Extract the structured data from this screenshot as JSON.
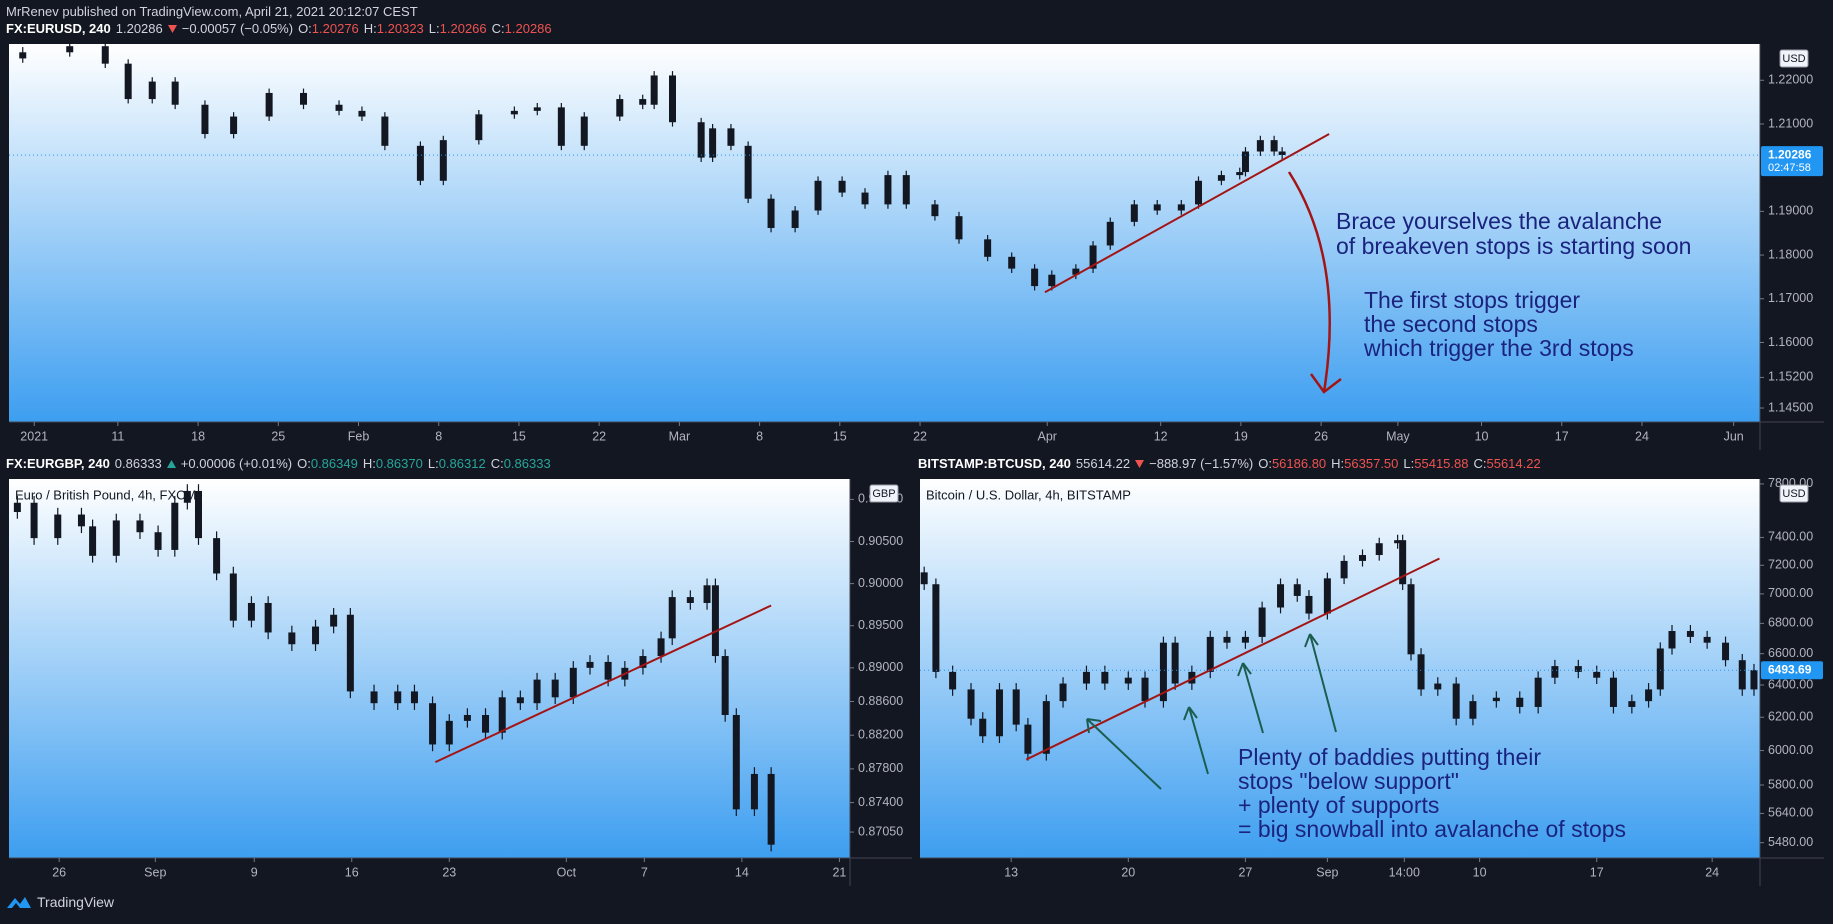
{
  "header": {
    "published": "MrRenev published on TradingView.com, April 21, 2021 20:12:07 CEST"
  },
  "footer": {
    "brand": "TradingView"
  },
  "chart_data": [
    {
      "type": "candlestick",
      "legend": {
        "symbol": "FX:EURUSD, 240",
        "last": "1.20286",
        "direction": "down",
        "change": "−0.00057 (−0.05%)",
        "ohlc": [
          {
            "label": "O:",
            "value": "1.20276"
          },
          {
            "label": "H:",
            "value": "1.20323"
          },
          {
            "label": "L:",
            "value": "1.20266"
          },
          {
            "label": "C:",
            "value": "1.20286"
          }
        ]
      },
      "currency": "USD",
      "last_price": 1.20286,
      "countdown": "02:47:58",
      "candle_color": "#131722",
      "xlim": [
        1.5,
        154.3
      ],
      "ylim": [
        1.1418,
        1.2283
      ],
      "log_scale": false,
      "grid": false,
      "xticks": [
        {
          "value": 3.7,
          "label": "2021"
        },
        11,
        18,
        25,
        {
          "value": 32,
          "label": "Feb"
        },
        {
          "value": 39,
          "label": "8"
        },
        {
          "value": 46,
          "label": "15"
        },
        {
          "value": 53,
          "label": "22"
        },
        {
          "value": 60,
          "label": "Mar"
        },
        {
          "value": 67,
          "label": "8"
        },
        {
          "value": 74,
          "label": "15"
        },
        {
          "value": 81,
          "label": "22"
        },
        {
          "value": 92.1,
          "label": "Apr"
        },
        {
          "value": 102,
          "label": "12"
        },
        {
          "value": 109,
          "label": "19"
        },
        {
          "value": 116,
          "label": "26"
        },
        {
          "value": 122.7,
          "label": "May"
        },
        {
          "value": 130,
          "label": "10"
        },
        {
          "value": 137,
          "label": "17"
        },
        {
          "value": 144,
          "label": "24"
        },
        {
          "value": 152,
          "label": "Jun"
        }
      ],
      "yticks": [
        {
          "value": 1.22,
          "label": "1.22000"
        },
        {
          "value": 1.21,
          "label": "1.21000"
        },
        {
          "value": 1.19,
          "label": "1.19000"
        },
        {
          "value": 1.18,
          "label": "1.18000"
        },
        {
          "value": 1.17,
          "label": "1.17000"
        },
        {
          "value": 1.16,
          "label": "1.16000"
        },
        {
          "value": 1.152,
          "label": "1.15200"
        },
        {
          "value": 1.145,
          "label": "1.14500"
        }
      ],
      "x": [
        2.7,
        6.8,
        9.9,
        11.9,
        14,
        16,
        18.6,
        21.1,
        24.2,
        27.2,
        30.3,
        32.3,
        34.3,
        37.4,
        39.4,
        42.5,
        45.6,
        47.6,
        49.7,
        51.7,
        54.8,
        56.8,
        57.8,
        59.4,
        61.9,
        62.9,
        64.5,
        66,
        68,
        70.1,
        72.1,
        74.2,
        76.2,
        78.2,
        79.8,
        82.3,
        84.4,
        86.9,
        89,
        91,
        92.5,
        94.6,
        96.1,
        97.6,
        99.7,
        101.7,
        103.8,
        105.3,
        107.3,
        108.9,
        109.4,
        110.7,
        111.9,
        112.6
      ],
      "open": [
        1.225,
        1.2264,
        1.2278,
        1.2238,
        1.2157,
        1.2197,
        1.2144,
        1.2077,
        1.2117,
        1.2171,
        1.2144,
        1.213,
        1.2117,
        1.205,
        1.197,
        1.2063,
        1.2122,
        1.213,
        1.2138,
        1.205,
        1.2117,
        1.2157,
        1.2144,
        1.2211,
        1.2104,
        1.2023,
        1.209,
        1.205,
        1.1929,
        1.1862,
        1.1902,
        1.197,
        1.1943,
        1.1916,
        1.1983,
        1.1916,
        1.1889,
        1.1836,
        1.1796,
        1.1769,
        1.1729,
        1.1755,
        1.1769,
        1.1822,
        1.1876,
        1.1916,
        1.1902,
        1.1916,
        1.197,
        1.1983,
        1.199,
        1.2037,
        1.2063,
        1.2037
      ],
      "high": [
        1.2276,
        1.2288,
        1.2288,
        1.2248,
        1.2207,
        1.2207,
        1.2154,
        1.2127,
        1.2181,
        1.2181,
        1.2154,
        1.214,
        1.2127,
        1.206,
        1.2073,
        1.2132,
        1.214,
        1.2148,
        1.2148,
        1.2127,
        1.2167,
        1.2167,
        1.2221,
        1.2221,
        1.2114,
        1.21,
        1.21,
        1.206,
        1.1939,
        1.1912,
        1.198,
        1.198,
        1.1953,
        1.1993,
        1.1993,
        1.1926,
        1.1899,
        1.1846,
        1.1806,
        1.1779,
        1.1765,
        1.1779,
        1.1832,
        1.1886,
        1.1926,
        1.1926,
        1.1926,
        1.198,
        1.1993,
        1.2,
        1.2047,
        1.2073,
        1.2073,
        1.2047
      ],
      "low": [
        1.224,
        1.2254,
        1.2228,
        1.2147,
        1.2147,
        1.2134,
        1.2067,
        1.2067,
        1.2107,
        1.2134,
        1.212,
        1.2107,
        1.204,
        1.196,
        1.196,
        1.2053,
        1.2112,
        1.212,
        1.204,
        1.204,
        1.2107,
        1.2134,
        1.2134,
        1.2094,
        1.2013,
        1.2013,
        1.204,
        1.1919,
        1.1852,
        1.1852,
        1.1892,
        1.1933,
        1.1906,
        1.1906,
        1.1906,
        1.1879,
        1.1826,
        1.1786,
        1.1759,
        1.1719,
        1.1719,
        1.1745,
        1.1759,
        1.1812,
        1.1866,
        1.1892,
        1.1892,
        1.1906,
        1.196,
        1.1973,
        1.198,
        1.2027,
        1.2027,
        1.2019
      ],
      "close": [
        1.2264,
        1.2278,
        1.2238,
        1.2157,
        1.2197,
        1.2144,
        1.2077,
        1.2117,
        1.2171,
        1.2144,
        1.213,
        1.2117,
        1.205,
        1.197,
        1.2063,
        1.2122,
        1.213,
        1.2138,
        1.205,
        1.2117,
        1.2157,
        1.2144,
        1.2211,
        1.2104,
        1.2023,
        1.209,
        1.205,
        1.1929,
        1.1862,
        1.1902,
        1.197,
        1.1943,
        1.1916,
        1.1983,
        1.1916,
        1.1889,
        1.1836,
        1.1796,
        1.1769,
        1.1729,
        1.1755,
        1.1769,
        1.1822,
        1.1876,
        1.1916,
        1.1902,
        1.1916,
        1.197,
        1.1983,
        1.199,
        1.2037,
        1.2063,
        1.2037,
        1.2029
      ],
      "trendline": {
        "x": [
          91.9,
          116.7
        ],
        "y": [
          1.1715,
          1.2077
        ],
        "color": "#a31515"
      },
      "annotations": [
        "Brace yourselves the avalanche",
        "of breakeven stops is starting soon",
        "The first stops trigger",
        "the second stops",
        "which trigger the 3rd stops"
      ]
    },
    {
      "type": "candlestick",
      "legend": {
        "symbol": "FX:EURGBP, 240",
        "last": "0.86333",
        "direction": "up",
        "change": "+0.00006 (+0.01%)",
        "ohlc": [
          {
            "label": "O:",
            "value": "0.86349"
          },
          {
            "label": "H:",
            "value": "0.86370"
          },
          {
            "label": "L:",
            "value": "0.86312"
          },
          {
            "label": "C:",
            "value": "0.86333"
          }
        ]
      },
      "title": "Euro / British Pound, 4h, FXCM",
      "currency": "GBP",
      "candle_color": "#131722",
      "xlim": [
        22.4,
        82.76
      ],
      "ylim": [
        0.86742,
        0.91242
      ],
      "log_scale": false,
      "grid": false,
      "xticks": [
        26,
        {
          "value": 32.9,
          "label": "Sep"
        },
        {
          "value": 40,
          "label": "9"
        },
        {
          "value": 47,
          "label": "16"
        },
        {
          "value": 54,
          "label": "23"
        },
        {
          "value": 62.4,
          "label": "Oct"
        },
        {
          "value": 68,
          "label": "7"
        },
        {
          "value": 75,
          "label": "14"
        },
        {
          "value": 82,
          "label": "21"
        }
      ],
      "yticks": [
        {
          "value": 0.91,
          "label": "0.91000"
        },
        {
          "value": 0.905,
          "label": "0.90500"
        },
        {
          "value": 0.9,
          "label": "0.90000"
        },
        {
          "value": 0.895,
          "label": "0.89500"
        },
        {
          "value": 0.89,
          "label": "0.89000"
        },
        {
          "value": 0.886,
          "label": "0.88600"
        },
        {
          "value": 0.882,
          "label": "0.88200"
        },
        {
          "value": 0.878,
          "label": "0.87800"
        },
        {
          "value": 0.874,
          "label": "0.87400"
        },
        {
          "value": 0.8705,
          "label": "0.87050"
        }
      ],
      "x": [
        23.0,
        24.2,
        25.9,
        27.6,
        28.4,
        30.1,
        31.8,
        33.1,
        34.3,
        35.2,
        36.0,
        37.3,
        38.5,
        39.8,
        41.0,
        42.7,
        44.4,
        45.7,
        46.9,
        48.6,
        50.3,
        51.5,
        52.8,
        54.0,
        55.3,
        56.6,
        57.8,
        59.1,
        60.3,
        61.6,
        62.9,
        64.1,
        65.4,
        66.6,
        67.9,
        69.2,
        70.0,
        71.3,
        72.5,
        73.1,
        73.8,
        74.6,
        75.9,
        77.1
      ],
      "open": [
        0.9085,
        0.9096,
        0.9054,
        0.9082,
        0.9068,
        0.9033,
        0.9075,
        0.9061,
        0.904,
        0.9096,
        0.911,
        0.9054,
        0.9012,
        0.8956,
        0.8977,
        0.8942,
        0.8928,
        0.8949,
        0.8963,
        0.8872,
        0.8858,
        0.8872,
        0.8858,
        0.8809,
        0.8837,
        0.8844,
        0.8823,
        0.8865,
        0.8858,
        0.8886,
        0.8865,
        0.89,
        0.8907,
        0.8886,
        0.89,
        0.8914,
        0.8935,
        0.8984,
        0.8977,
        0.8998,
        0.8914,
        0.8844,
        0.8732,
        0.8774
      ],
      "high": [
        0.9104,
        0.9104,
        0.909,
        0.909,
        0.9076,
        0.9083,
        0.9083,
        0.9069,
        0.9104,
        0.9118,
        0.9118,
        0.9062,
        0.902,
        0.8985,
        0.8985,
        0.895,
        0.8957,
        0.8971,
        0.8971,
        0.888,
        0.888,
        0.888,
        0.8866,
        0.8845,
        0.8852,
        0.8852,
        0.8873,
        0.8873,
        0.8894,
        0.8894,
        0.8908,
        0.8915,
        0.8915,
        0.8908,
        0.8922,
        0.8943,
        0.8992,
        0.8992,
        0.9006,
        0.9006,
        0.8922,
        0.8852,
        0.8782,
        0.8782
      ],
      "low": [
        0.9077,
        0.9046,
        0.9046,
        0.906,
        0.9025,
        0.9025,
        0.9053,
        0.9032,
        0.9032,
        0.9088,
        0.9046,
        0.9004,
        0.8948,
        0.8948,
        0.8934,
        0.892,
        0.892,
        0.8941,
        0.8864,
        0.885,
        0.885,
        0.885,
        0.8801,
        0.8801,
        0.8829,
        0.8815,
        0.8815,
        0.885,
        0.885,
        0.8857,
        0.8857,
        0.8892,
        0.8878,
        0.8878,
        0.8892,
        0.8906,
        0.8927,
        0.8969,
        0.8969,
        0.8906,
        0.8836,
        0.8724,
        0.8724,
        0.8682
      ],
      "close": [
        0.9096,
        0.9054,
        0.9082,
        0.9068,
        0.9033,
        0.9075,
        0.9061,
        0.904,
        0.9096,
        0.911,
        0.9054,
        0.9012,
        0.8956,
        0.8977,
        0.8942,
        0.8928,
        0.8949,
        0.8963,
        0.8872,
        0.8858,
        0.8872,
        0.8858,
        0.8809,
        0.8837,
        0.8844,
        0.8823,
        0.8865,
        0.8858,
        0.8886,
        0.8865,
        0.89,
        0.8907,
        0.8886,
        0.89,
        0.8914,
        0.8935,
        0.8984,
        0.8977,
        0.8998,
        0.8914,
        0.8844,
        0.8732,
        0.8774,
        0.869
      ],
      "trendline": {
        "x": [
          53.0,
          77.1
        ],
        "y": [
          0.8788,
          0.8974
        ],
        "color": "#a31515"
      }
    },
    {
      "type": "candlestick",
      "legend": {
        "symbol": "BITSTAMP:BTCUSD, 240",
        "last": "55614.22",
        "direction": "down",
        "change": "−888.97 (−1.57%)",
        "ohlc": [
          {
            "label": "O:",
            "value": "56186.80"
          },
          {
            "label": "H:",
            "value": "56357.50"
          },
          {
            "label": "L:",
            "value": "55415.88"
          },
          {
            "label": "C:",
            "value": "55614.22"
          }
        ]
      },
      "title": "Bitcoin / U.S. Dollar, 4h, BITSTAMP",
      "currency": "USD",
      "last_price": 6493.69,
      "candle_color": "#131722",
      "xlim": [
        7.55,
        57.76
      ],
      "ylim": [
        5398,
        7838
      ],
      "log_scale": true,
      "grid": false,
      "xticks": [
        13,
        20,
        27,
        {
          "value": 31.9,
          "label": "Sep"
        },
        {
          "value": 36.5,
          "label": "14:00"
        },
        {
          "value": 41,
          "label": "10"
        },
        {
          "value": 48,
          "label": "17"
        },
        {
          "value": 54.9,
          "label": "24"
        }
      ],
      "yticks": [
        {
          "value": 7800,
          "label": "7800.00"
        },
        {
          "value": 7400,
          "label": "7400.00"
        },
        {
          "value": 7200,
          "label": "7200.00"
        },
        {
          "value": 7000,
          "label": "7000.00"
        },
        {
          "value": 6800,
          "label": "6800.00"
        },
        {
          "value": 6600,
          "label": "6600.00"
        },
        {
          "value": 6400,
          "label": "6400.00"
        },
        {
          "value": 6200,
          "label": "6200.00"
        },
        {
          "value": 6000,
          "label": "6000.00"
        },
        {
          "value": 5800,
          "label": "5800.00"
        },
        {
          "value": 5640,
          "label": "5640.00"
        },
        {
          "value": 5480,
          "label": "5480.00"
        }
      ],
      "x": [
        7.8,
        8.5,
        9.5,
        10.6,
        11.3,
        12.3,
        13.3,
        14.0,
        15.1,
        16.1,
        17.5,
        18.6,
        20.0,
        21.0,
        22.1,
        22.8,
        23.8,
        24.9,
        25.9,
        27.0,
        28.0,
        29.1,
        30.1,
        30.8,
        31.9,
        32.9,
        34.0,
        35.0,
        36.1,
        36.4,
        36.9,
        37.5,
        38.5,
        39.6,
        40.6,
        42.0,
        43.4,
        44.5,
        45.5,
        46.9,
        48.0,
        49.0,
        50.1,
        51.1,
        51.8,
        52.5,
        53.6,
        54.6,
        55.7,
        56.7,
        57.4
      ],
      "open": [
        7150,
        7067,
        6483,
        6372,
        6191,
        6085,
        6372,
        6155,
        5981,
        6299,
        6409,
        6483,
        6409,
        6446,
        6299,
        6672,
        6409,
        6483,
        6710,
        6672,
        6710,
        6907,
        7067,
        6986,
        6866,
        7108,
        7231,
        7273,
        7358,
        7380,
        7067,
        6596,
        6372,
        6409,
        6191,
        6299,
        6320,
        6263,
        6446,
        6520,
        6483,
        6446,
        6263,
        6299,
        6372,
        6634,
        6749,
        6710,
        6672,
        6558,
        6372
      ],
      "high": [
        7190,
        7107,
        6523,
        6412,
        6231,
        6412,
        6412,
        6195,
        6339,
        6449,
        6523,
        6523,
        6486,
        6486,
        6712,
        6712,
        6523,
        6750,
        6750,
        6750,
        6947,
        7107,
        7107,
        7026,
        7148,
        7271,
        7313,
        7398,
        7420,
        7420,
        7107,
        6636,
        6449,
        6449,
        6339,
        6360,
        6360,
        6486,
        6560,
        6560,
        6523,
        6486,
        6339,
        6412,
        6674,
        6789,
        6789,
        6750,
        6712,
        6598,
        6534
      ],
      "low": [
        7027,
        6443,
        6332,
        6151,
        6045,
        6045,
        6115,
        5941,
        5941,
        6259,
        6369,
        6369,
        6369,
        6259,
        6259,
        6369,
        6369,
        6443,
        6632,
        6632,
        6670,
        6867,
        6946,
        6826,
        6826,
        7068,
        7191,
        7233,
        7318,
        7027,
        6556,
        6332,
        6332,
        6151,
        6151,
        6259,
        6223,
        6223,
        6406,
        6443,
        6406,
        6223,
        6223,
        6259,
        6332,
        6594,
        6670,
        6632,
        6518,
        6332,
        6332
      ],
      "close": [
        7067,
        6483,
        6372,
        6191,
        6085,
        6372,
        6155,
        5981,
        6299,
        6409,
        6483,
        6409,
        6446,
        6299,
        6672,
        6409,
        6483,
        6710,
        6672,
        6710,
        6907,
        7067,
        6986,
        6866,
        7108,
        7231,
        7273,
        7358,
        7380,
        7067,
        6596,
        6372,
        6409,
        6191,
        6299,
        6320,
        6263,
        6446,
        6520,
        6483,
        6446,
        6263,
        6299,
        6372,
        6634,
        6749,
        6710,
        6672,
        6558,
        6372,
        6494
      ],
      "trendline": {
        "x": [
          13.9,
          38.6
        ],
        "y": [
          5947,
          7248
        ],
        "color": "#a31515"
      },
      "annotations": [
        "Plenty of baddies putting their",
        "stops \"below support\"",
        "+ plenty of supports",
        "= big snowball into avalanche of stops"
      ]
    }
  ]
}
